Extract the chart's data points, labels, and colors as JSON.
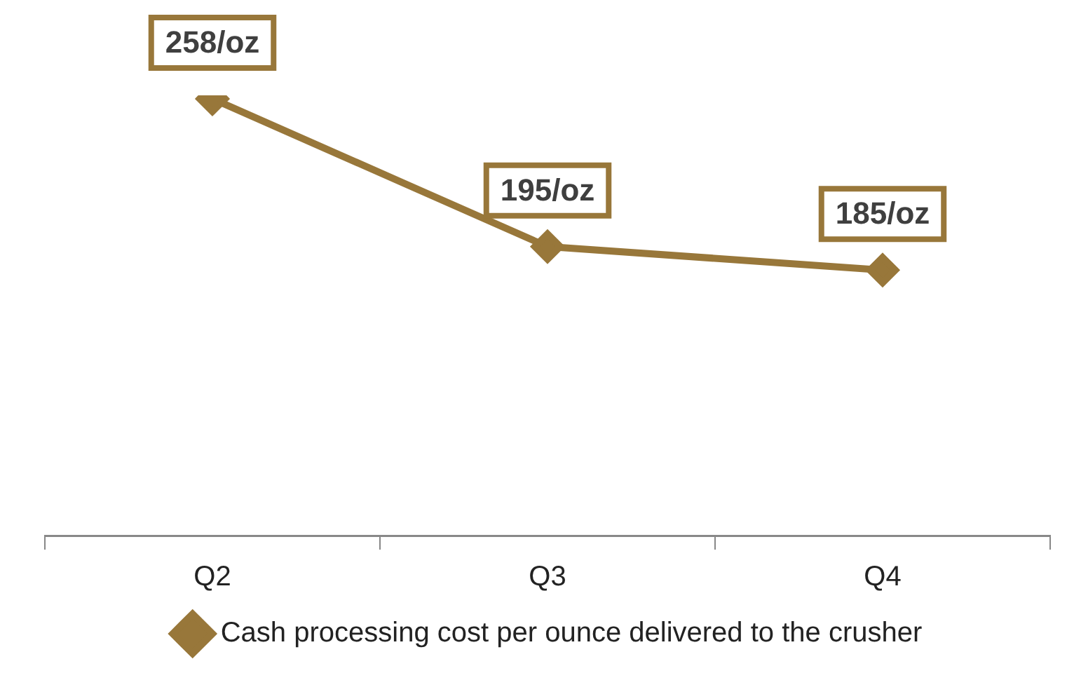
{
  "chart_data": {
    "type": "line",
    "categories": [
      "Q2",
      "Q3",
      "Q4"
    ],
    "series": [
      {
        "name": "Cash processing cost per ounce delivered to the crusher",
        "color": "#98773a",
        "values": [
          258,
          195,
          185
        ],
        "value_labels": [
          "258/oz",
          "195/oz",
          "185/oz"
        ]
      }
    ],
    "marker": "diamond",
    "grid": false,
    "legend": "bottom",
    "tick_labels": "x"
  }
}
